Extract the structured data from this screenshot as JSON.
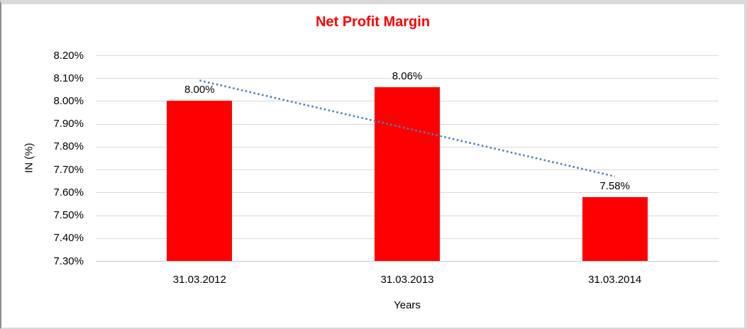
{
  "chart_data": {
    "type": "bar",
    "title": "Net Profit Margin",
    "title_color": "#ff0000",
    "categories": [
      "31.03.2012",
      "31.03.2013",
      "31.03.2014"
    ],
    "values": [
      8.0,
      8.06,
      7.58
    ],
    "data_labels": [
      "8.00%",
      "8.06%",
      "7.58%"
    ],
    "xlabel": "Years",
    "ylabel": "IN (%)",
    "ylim": [
      7.3,
      8.2
    ],
    "ytick_step": 0.1,
    "yticks": [
      "8.20%",
      "8.10%",
      "8.00%",
      "7.90%",
      "7.80%",
      "7.70%",
      "7.60%",
      "7.50%",
      "7.40%",
      "7.30%"
    ],
    "bar_color": "#ff0000",
    "gridline_color": "#d9d9d9",
    "grid": true,
    "legend": "none",
    "trendline": {
      "style": "dotted",
      "color": "#4f81bd",
      "start_value": 8.09,
      "end_value": 7.67
    }
  }
}
